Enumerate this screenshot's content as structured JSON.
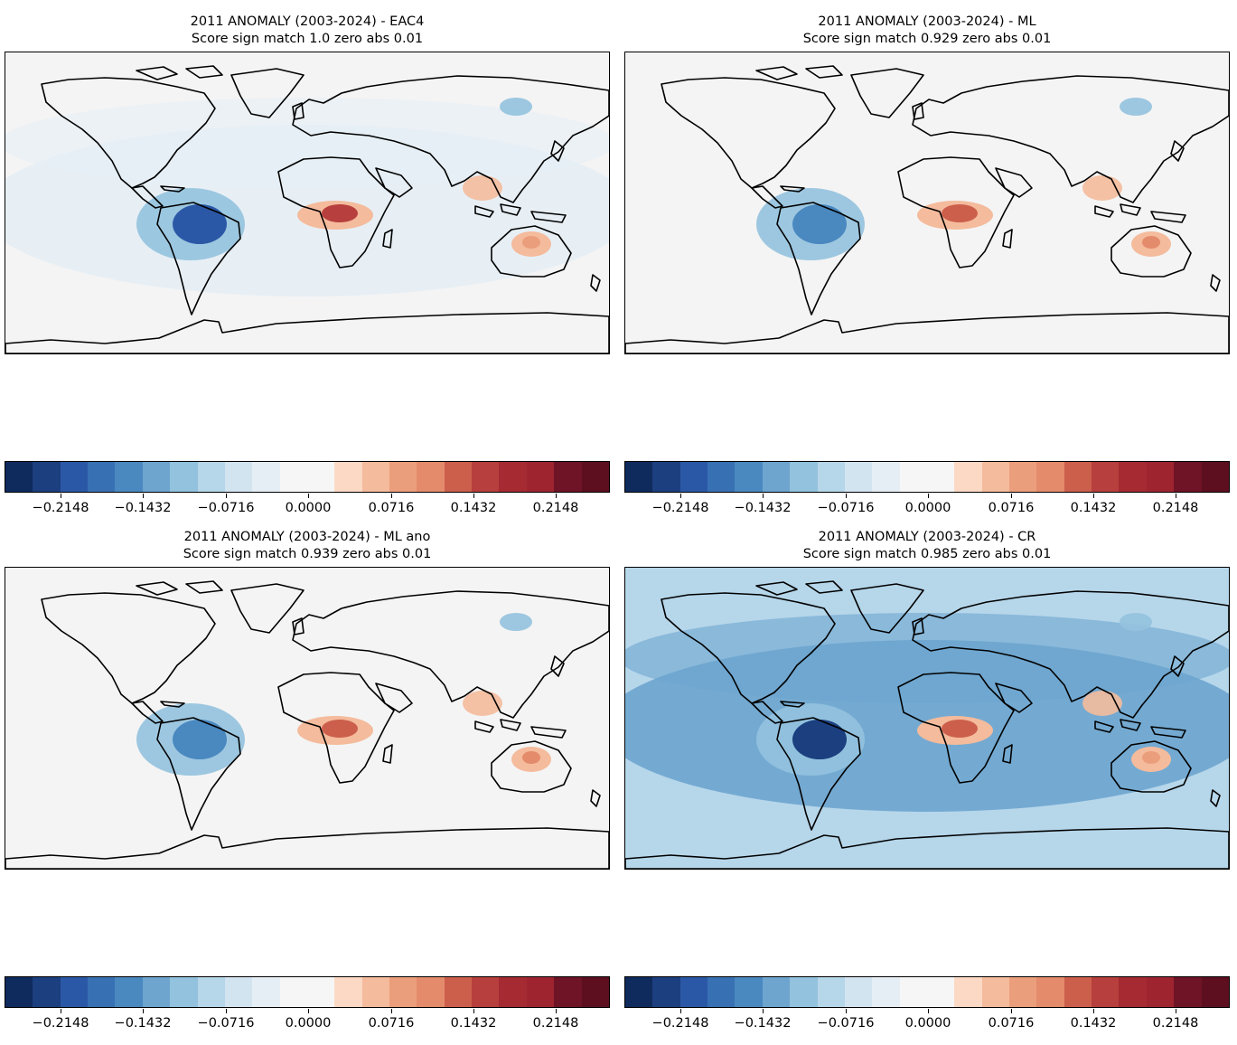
{
  "figure": {
    "colorbar": {
      "colors": [
        "#0f2a5c",
        "#1c3f80",
        "#2b58a6",
        "#3871b3",
        "#4a88c0",
        "#6da5cf",
        "#93c2de",
        "#b6d6ea",
        "#d3e4f1",
        "#e6eef5",
        "#f6f6f6",
        "#f6f6f6",
        "#fbd9c4",
        "#f4bb9c",
        "#eb9e7c",
        "#e48b6c",
        "#cc5f4c",
        "#b73f3d",
        "#a52a32",
        "#9e2530",
        "#6e1426",
        "#5d0f1f"
      ],
      "tick_labels": [
        "−0.2148",
        "−0.1432",
        "−0.0716",
        "0.0000",
        "0.0716",
        "0.1432",
        "0.2148"
      ]
    },
    "panels": [
      {
        "title_line1": "2011 ANOMALY (2003-2024)  - EAC4",
        "title_line2": "Score sign match 1.0 zero abs 0.01",
        "background": "#f4f4f4",
        "ocean_tint": "#e6eef5",
        "features": [
          {
            "name": "south-america-negative-core",
            "color": "#2b58a6"
          },
          {
            "name": "central-africa-positive",
            "color": "#b73f3d"
          },
          {
            "name": "australia-positive",
            "color": "#eb9e7c"
          }
        ]
      },
      {
        "title_line1": "2011 ANOMALY (2003-2024)  - ML",
        "title_line2": "Score sign match 0.929 zero abs 0.01",
        "background": "#f4f4f4",
        "ocean_tint": "#f4f4f4",
        "features": [
          {
            "name": "south-america-negative-core",
            "color": "#4a88c0"
          },
          {
            "name": "central-africa-positive",
            "color": "#cc5f4c"
          },
          {
            "name": "australia-positive",
            "color": "#e48b6c"
          }
        ]
      },
      {
        "title_line1": "2011 ANOMALY (2003-2024)  - ML ano",
        "title_line2": "Score sign match 0.939 zero abs 0.01",
        "background": "#f4f4f4",
        "ocean_tint": "#f4f4f4",
        "features": [
          {
            "name": "south-america-negative-core",
            "color": "#4a88c0"
          },
          {
            "name": "central-africa-positive",
            "color": "#cc5f4c"
          },
          {
            "name": "australia-positive",
            "color": "#e48b6c"
          }
        ]
      },
      {
        "title_line1": "2011 ANOMALY (2003-2024)  - CR",
        "title_line2": "Score sign match 0.985 zero abs 0.01",
        "background": "#b6d6ea",
        "ocean_tint": "#6da5cf",
        "features": [
          {
            "name": "south-america-negative-core",
            "color": "#1c3f80"
          },
          {
            "name": "central-africa-positive",
            "color": "#cc5f4c"
          },
          {
            "name": "australia-positive",
            "color": "#eb9e7c"
          }
        ]
      }
    ]
  }
}
